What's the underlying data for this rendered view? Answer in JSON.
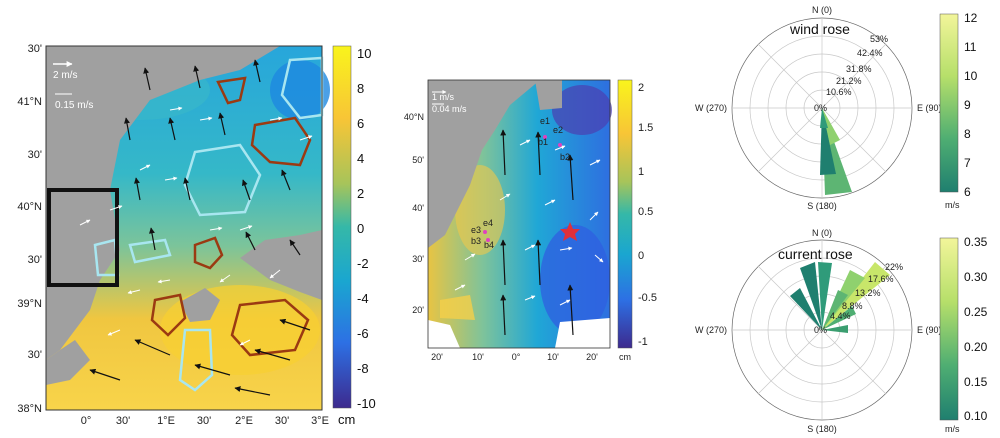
{
  "map_left": {
    "lat_labels": [
      "30'",
      "41°N",
      "30'",
      "40°N",
      "30'",
      "39°N",
      "30'",
      "38°N"
    ],
    "lon_labels": [
      "0°",
      "30'",
      "1°E",
      "30'",
      "2°E",
      "30'",
      "3°E"
    ],
    "scale_wind": "2 m/s",
    "scale_current": "0.15 m/s",
    "colorbar": {
      "ticks": [
        "10",
        "8",
        "6",
        "4",
        "2",
        "0",
        "-2",
        "-4",
        "-6",
        "-8",
        "-10"
      ],
      "unit": "cm"
    }
  },
  "map_mid": {
    "lat_labels": [
      "40°N",
      "50'",
      "40'",
      "30'",
      "20'"
    ],
    "lon_labels": [
      "20'",
      "10'",
      "0°",
      "10'",
      "20'"
    ],
    "scale_wind": "1 m/s",
    "scale_current": "0.04 m/s",
    "stations": [
      "e1",
      "e2",
      "b1",
      "b2",
      "e3",
      "e4",
      "b3",
      "b4"
    ],
    "colorbar": {
      "ticks": [
        "2",
        "1.5",
        "1",
        "0.5",
        "0",
        "-0.5",
        "-1"
      ],
      "unit": "cm"
    }
  },
  "wind_rose": {
    "title": "wind rose",
    "dirs": [
      "N (0)",
      "E (90)",
      "S (180)",
      "W (270)"
    ],
    "rings": [
      "53%",
      "42.4%",
      "31.8%",
      "21.2%",
      "10.6%",
      "0%"
    ],
    "colorbar": {
      "ticks": [
        "12",
        "11",
        "10",
        "9",
        "8",
        "7",
        "6"
      ],
      "unit": "m/s"
    }
  },
  "current_rose": {
    "title": "current rose",
    "dirs": [
      "N (0)",
      "E (90)",
      "S (180)",
      "W (270)"
    ],
    "rings": [
      "22%",
      "17.6%",
      "13.2%",
      "8.8%",
      "4.4%",
      "0%"
    ],
    "colorbar": {
      "ticks": [
        "0.35",
        "0.30",
        "0.25",
        "0.20",
        "0.15",
        "0.10"
      ],
      "unit": "m/s"
    }
  },
  "colors": {
    "land": "#a0a0a0",
    "contour_cyan": "#a8e6f0",
    "contour_brown": "#9b3a12",
    "star": "#e0303a",
    "station": "#e040c0",
    "rose_dark": "#1f7f6f",
    "rose_light": "#c8e66a"
  }
}
